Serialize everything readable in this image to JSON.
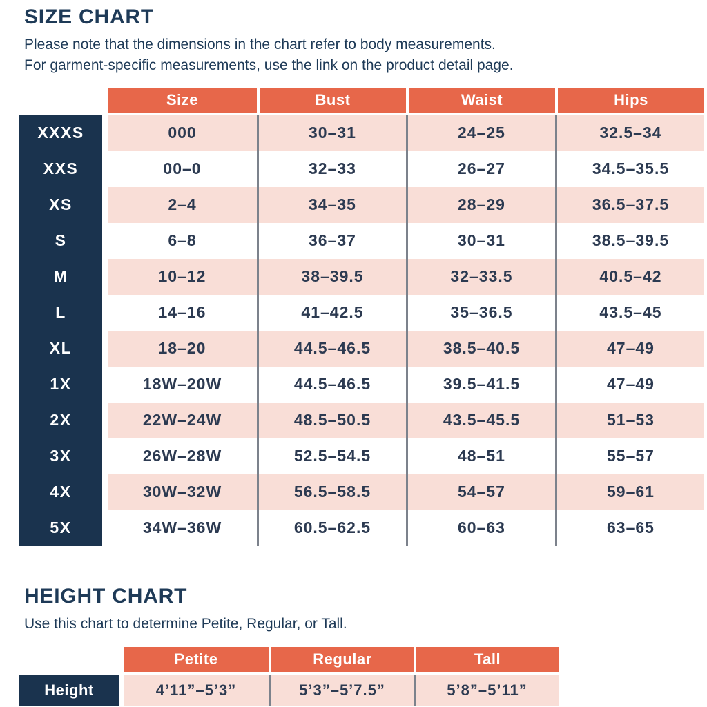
{
  "colors": {
    "accent_orange": "#e7674a",
    "row_pink": "#f9ded7",
    "label_navy": "#1a334e",
    "text_navy": "#2c3a51",
    "divider_gray": "#7c828c"
  },
  "chart_data": [
    {
      "type": "table",
      "title": "SIZE CHART",
      "note_line1": "Please note that the dimensions in the chart refer to body measurements.",
      "note_line2": "For garment-specific measurements, use the link on the product detail page.",
      "columns": [
        "Size",
        "Bust",
        "Waist",
        "Hips"
      ],
      "rows": [
        {
          "label": "XXXS",
          "size": "000",
          "bust": "30–31",
          "waist": "24–25",
          "hips": "32.5–34"
        },
        {
          "label": "XXS",
          "size": "00–0",
          "bust": "32–33",
          "waist": "26–27",
          "hips": "34.5–35.5"
        },
        {
          "label": "XS",
          "size": "2–4",
          "bust": "34–35",
          "waist": "28–29",
          "hips": "36.5–37.5"
        },
        {
          "label": "S",
          "size": "6–8",
          "bust": "36–37",
          "waist": "30–31",
          "hips": "38.5–39.5"
        },
        {
          "label": "M",
          "size": "10–12",
          "bust": "38–39.5",
          "waist": "32–33.5",
          "hips": "40.5–42"
        },
        {
          "label": "L",
          "size": "14–16",
          "bust": "41–42.5",
          "waist": "35–36.5",
          "hips": "43.5–45"
        },
        {
          "label": "XL",
          "size": "18–20",
          "bust": "44.5–46.5",
          "waist": "38.5–40.5",
          "hips": "47–49"
        },
        {
          "label": "1X",
          "size": "18W–20W",
          "bust": "44.5–46.5",
          "waist": "39.5–41.5",
          "hips": "47–49"
        },
        {
          "label": "2X",
          "size": "22W–24W",
          "bust": "48.5–50.5",
          "waist": "43.5–45.5",
          "hips": "51–53"
        },
        {
          "label": "3X",
          "size": "26W–28W",
          "bust": "52.5–54.5",
          "waist": "48–51",
          "hips": "55–57"
        },
        {
          "label": "4X",
          "size": "30W–32W",
          "bust": "56.5–58.5",
          "waist": "54–57",
          "hips": "59–61"
        },
        {
          "label": "5X",
          "size": "34W–36W",
          "bust": "60.5–62.5",
          "waist": "60–63",
          "hips": "63–65"
        }
      ]
    },
    {
      "type": "table",
      "title": "HEIGHT CHART",
      "note": "Use this chart to determine Petite, Regular, or Tall.",
      "columns": [
        "Petite",
        "Regular",
        "Tall"
      ],
      "row_label": "Height",
      "values": [
        "4’11”–5’3”",
        "5’3”–5’7.5”",
        "5’8”–5’11”"
      ]
    }
  ]
}
